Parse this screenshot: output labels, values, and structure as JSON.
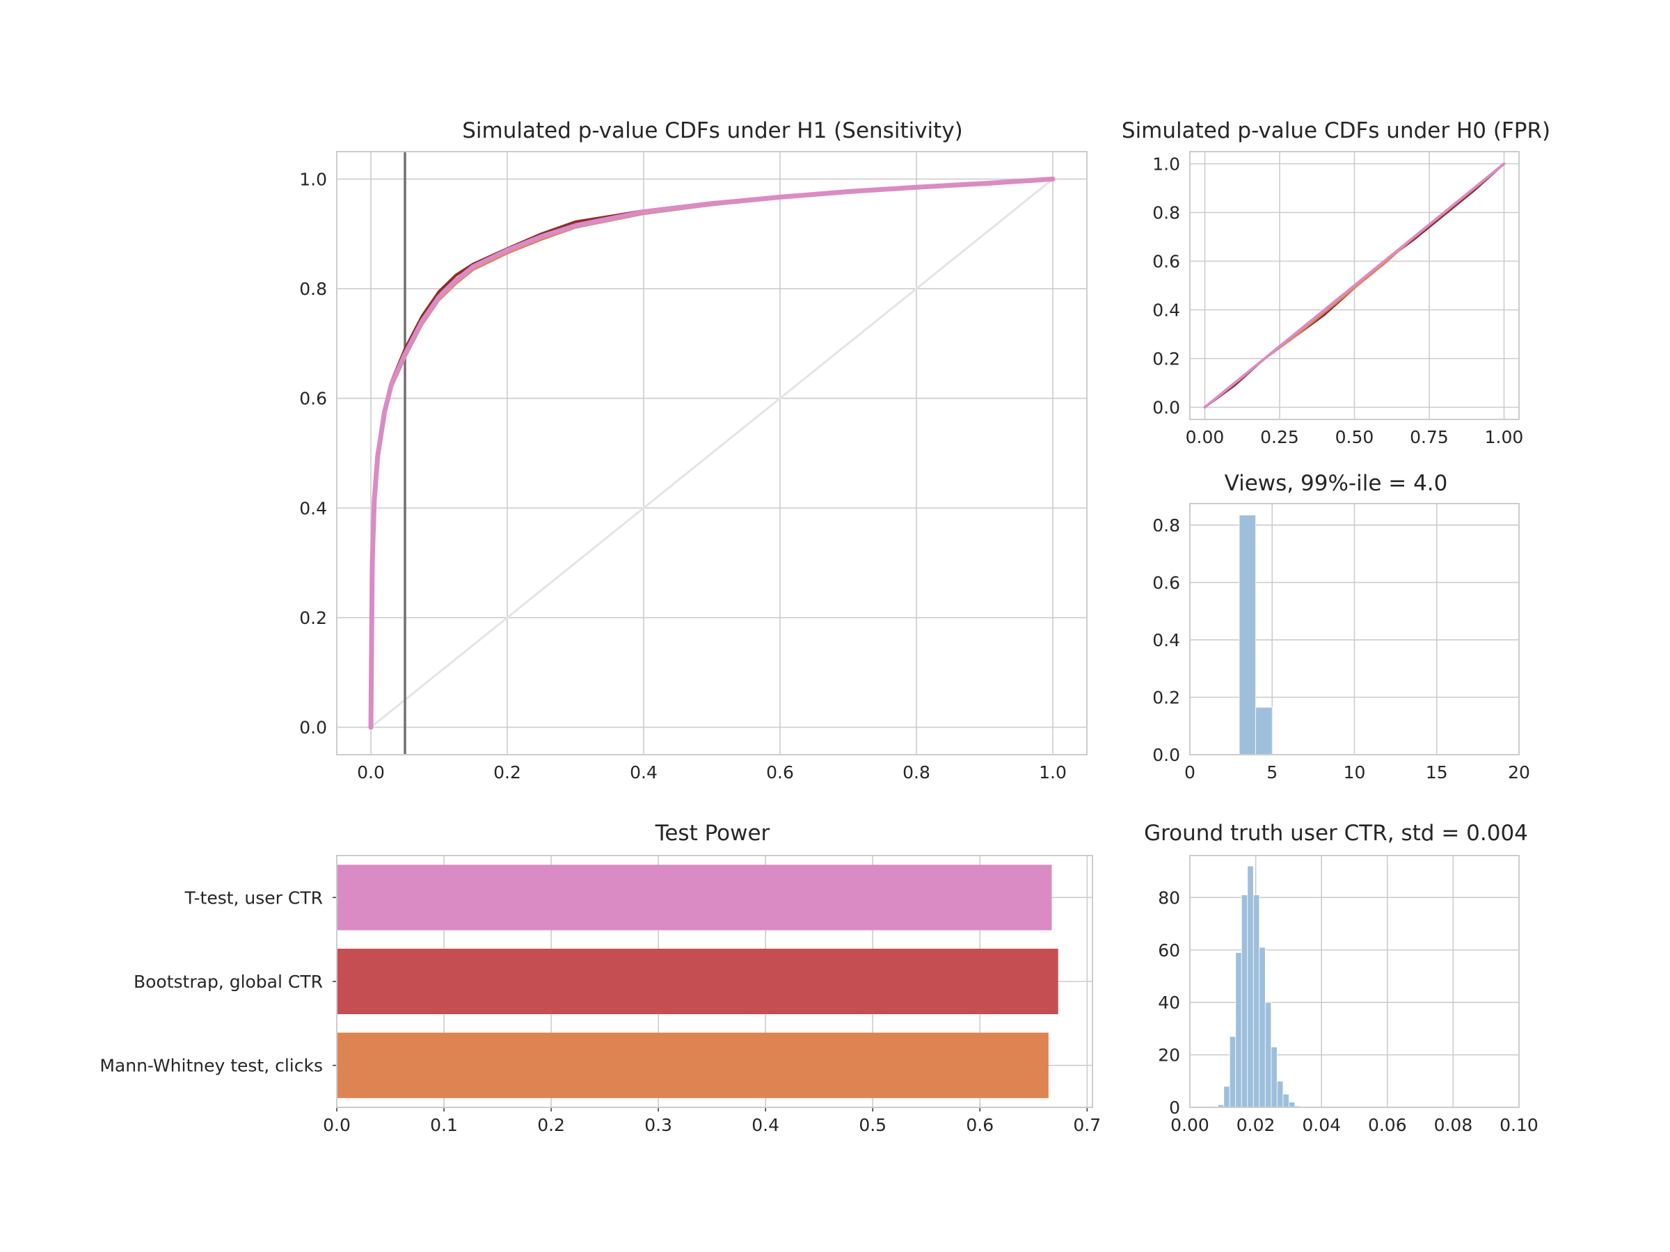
{
  "colors": {
    "pink": "#da8bc3",
    "red": "#c44e52",
    "orange": "#dd8452",
    "hist_blue": "#9ebfdc",
    "grid": "#cccccc",
    "frame": "#cccccc",
    "threshold_line": "#707070",
    "diagonal": "#e4e4e4",
    "dark_red": "#8c2d2d"
  },
  "chart_data": [
    {
      "id": "h1",
      "type": "line",
      "title": "Simulated p-value CDFs under H1 (Sensitivity)",
      "xlabel": "",
      "ylabel": "",
      "xlim": [
        -0.05,
        1.05
      ],
      "ylim": [
        -0.05,
        1.05
      ],
      "xticks": [
        0.0,
        0.2,
        0.4,
        0.6,
        0.8,
        1.0
      ],
      "yticks": [
        0.0,
        0.2,
        0.4,
        0.6,
        0.8,
        1.0
      ],
      "xtick_labels": [
        "0.0",
        "0.2",
        "0.4",
        "0.6",
        "0.8",
        "1.0"
      ],
      "ytick_labels": [
        "0.0",
        "0.2",
        "0.4",
        "0.6",
        "0.8",
        "1.0"
      ],
      "grid": true,
      "reference_line": {
        "x": [
          0,
          1
        ],
        "y": [
          0,
          1
        ]
      },
      "vline_x": 0.05,
      "series": [
        {
          "color_key": "dark_red",
          "x": [
            0,
            0.002,
            0.005,
            0.01,
            0.02,
            0.03,
            0.05,
            0.075,
            0.1,
            0.125,
            0.15,
            0.2,
            0.25,
            0.3,
            0.4,
            0.5,
            0.6,
            0.7,
            0.8,
            0.9,
            1.0
          ],
          "y": [
            0,
            0.3,
            0.42,
            0.5,
            0.58,
            0.63,
            0.69,
            0.75,
            0.795,
            0.825,
            0.845,
            0.873,
            0.9,
            0.922,
            0.942,
            0.957,
            0.968,
            0.978,
            0.986,
            0.993,
            1.0
          ]
        },
        {
          "color_key": "orange",
          "x": [
            0,
            0.002,
            0.005,
            0.01,
            0.02,
            0.03,
            0.05,
            0.075,
            0.1,
            0.125,
            0.15,
            0.2,
            0.25,
            0.3,
            0.4,
            0.5,
            0.6,
            0.7,
            0.8,
            0.9,
            1.0
          ],
          "y": [
            0,
            0.29,
            0.41,
            0.49,
            0.57,
            0.62,
            0.675,
            0.735,
            0.78,
            0.81,
            0.835,
            0.865,
            0.89,
            0.912,
            0.937,
            0.953,
            0.966,
            0.977,
            0.985,
            0.992,
            1.0
          ]
        },
        {
          "color_key": "pink",
          "x": [
            0,
            0.002,
            0.005,
            0.01,
            0.02,
            0.03,
            0.05,
            0.075,
            0.1,
            0.125,
            0.15,
            0.2,
            0.25,
            0.3,
            0.4,
            0.5,
            0.6,
            0.7,
            0.8,
            0.9,
            1.0
          ],
          "y": [
            0,
            0.3,
            0.415,
            0.495,
            0.575,
            0.625,
            0.68,
            0.74,
            0.785,
            0.815,
            0.84,
            0.87,
            0.895,
            0.915,
            0.94,
            0.955,
            0.967,
            0.977,
            0.985,
            0.992,
            1.0
          ]
        }
      ]
    },
    {
      "id": "h0",
      "type": "line",
      "title": "Simulated p-value CDFs under H0 (FPR)",
      "xlabel": "",
      "ylabel": "",
      "xlim": [
        -0.05,
        1.05
      ],
      "ylim": [
        -0.05,
        1.05
      ],
      "xticks": [
        0.0,
        0.25,
        0.5,
        0.75,
        1.0
      ],
      "yticks": [
        0.0,
        0.2,
        0.4,
        0.6,
        0.8,
        1.0
      ],
      "xtick_labels": [
        "0.00",
        "0.25",
        "0.50",
        "0.75",
        "1.00"
      ],
      "ytick_labels": [
        "0.0",
        "0.2",
        "0.4",
        "0.6",
        "0.8",
        "1.0"
      ],
      "grid": true,
      "reference_line": {
        "x": [
          0,
          1
        ],
        "y": [
          0,
          1
        ]
      },
      "series": [
        {
          "color_key": "dark_red",
          "x": [
            0,
            0.1,
            0.2,
            0.3,
            0.4,
            0.5,
            0.6,
            0.7,
            0.8,
            0.9,
            1.0
          ],
          "y": [
            0,
            0.09,
            0.2,
            0.29,
            0.38,
            0.49,
            0.6,
            0.69,
            0.79,
            0.89,
            1.0
          ]
        },
        {
          "color_key": "orange",
          "x": [
            0,
            0.1,
            0.2,
            0.3,
            0.4,
            0.5,
            0.6,
            0.7,
            0.8,
            0.9,
            1.0
          ],
          "y": [
            0,
            0.1,
            0.2,
            0.29,
            0.39,
            0.49,
            0.59,
            0.7,
            0.8,
            0.9,
            1.0
          ]
        },
        {
          "color_key": "pink",
          "x": [
            0,
            0.1,
            0.2,
            0.3,
            0.4,
            0.5,
            0.6,
            0.7,
            0.8,
            0.9,
            1.0
          ],
          "y": [
            0,
            0.1,
            0.2,
            0.3,
            0.4,
            0.5,
            0.6,
            0.7,
            0.8,
            0.9,
            1.0
          ]
        }
      ]
    },
    {
      "id": "views",
      "type": "bar",
      "title": "Views, 99%-ile = 4.0",
      "xlabel": "",
      "ylabel": "",
      "xlim": [
        0,
        20
      ],
      "ylim": [
        0,
        0.875
      ],
      "xticks": [
        0,
        5,
        10,
        15,
        20
      ],
      "yticks": [
        0.0,
        0.2,
        0.4,
        0.6,
        0.8
      ],
      "xtick_labels": [
        "0",
        "5",
        "10",
        "15",
        "20"
      ],
      "ytick_labels": [
        "0.0",
        "0.2",
        "0.4",
        "0.6",
        "0.8"
      ],
      "grid": true,
      "bins": [
        {
          "x0": 3.0,
          "x1": 4.0,
          "value": 0.835
        },
        {
          "x0": 4.0,
          "x1": 5.0,
          "value": 0.165
        }
      ]
    },
    {
      "id": "power",
      "type": "bar",
      "orientation": "horizontal",
      "title": "Test Power",
      "xlabel": "",
      "ylabel": "",
      "xlim": [
        0,
        0.705
      ],
      "xticks": [
        0.0,
        0.1,
        0.2,
        0.3,
        0.4,
        0.5,
        0.6,
        0.7
      ],
      "xtick_labels": [
        "0.0",
        "0.1",
        "0.2",
        "0.3",
        "0.4",
        "0.5",
        "0.6",
        "0.7"
      ],
      "grid": true,
      "categories": [
        "T-test, user CTR",
        "Bootstrap, global CTR",
        "Mann-Whitney test, clicks"
      ],
      "values": [
        0.667,
        0.673,
        0.664
      ],
      "bar_color_keys": [
        "pink",
        "red",
        "orange"
      ]
    },
    {
      "id": "ctr",
      "type": "bar",
      "title": "Ground truth user CTR, std = 0.004",
      "xlabel": "",
      "ylabel": "",
      "xlim": [
        0,
        0.1
      ],
      "ylim": [
        0,
        96
      ],
      "xticks": [
        0.0,
        0.02,
        0.04,
        0.06,
        0.08,
        0.1
      ],
      "yticks": [
        0,
        20,
        40,
        60,
        80
      ],
      "xtick_labels": [
        "0.00",
        "0.02",
        "0.04",
        "0.06",
        "0.08",
        "0.10"
      ],
      "ytick_labels": [
        "0",
        "20",
        "40",
        "60",
        "80"
      ],
      "grid": true,
      "bin_width": 0.0018,
      "bin_starts": [
        0.0085,
        0.0103,
        0.0121,
        0.0139,
        0.0157,
        0.0175,
        0.0193,
        0.0211,
        0.0229,
        0.0247,
        0.0265,
        0.0283,
        0.0301,
        0.0319
      ],
      "values": [
        1,
        8,
        27,
        59,
        81,
        92,
        81,
        61,
        40,
        23,
        10,
        5,
        2,
        0.5
      ]
    }
  ]
}
